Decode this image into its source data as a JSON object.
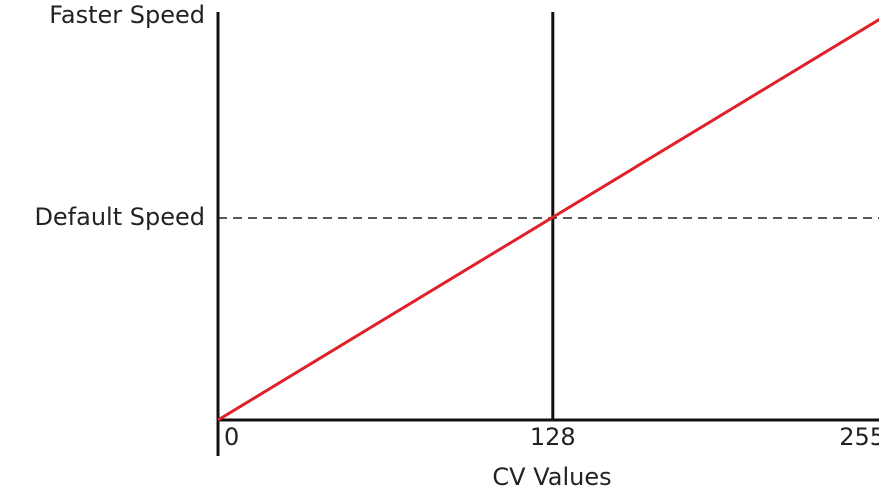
{
  "chart_data": {
    "type": "line",
    "x": [
      0,
      255
    ],
    "series": [
      {
        "color": "#e0202a",
        "values": [
          0,
          2
        ]
      }
    ],
    "xlabel": "CV Values",
    "xlim": [
      0,
      255
    ],
    "xticks": [
      0,
      128,
      255
    ],
    "ylim": [
      0,
      2
    ],
    "yticks": [
      {
        "value": 1,
        "label": "Default Speed"
      },
      {
        "value": 2,
        "label": "Faster Speed"
      }
    ],
    "grid": true
  }
}
